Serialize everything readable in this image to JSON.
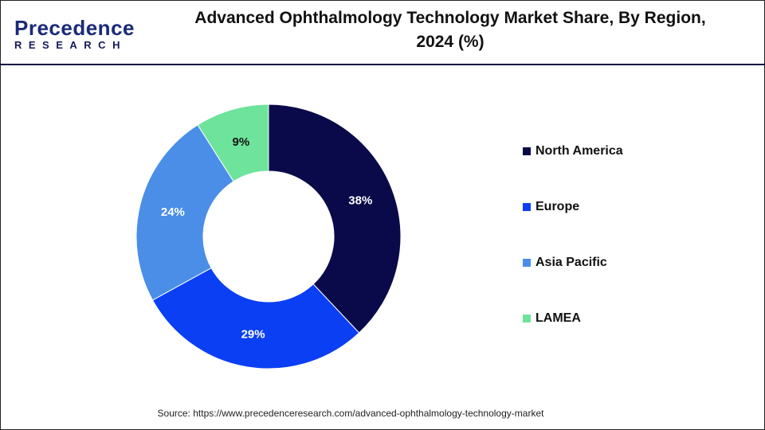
{
  "header": {
    "logo_main": "Precedence",
    "logo_sub": "RESEARCH",
    "title_line1": "Advanced Ophthalmology Technology Market Share, By Region,",
    "title_line2": "2024 (%)"
  },
  "chart_data": {
    "type": "donut",
    "title": "Advanced Ophthalmology Technology Market Share, By Region, 2024 (%)",
    "categories": [
      "North America",
      "Europe",
      "Asia Pacific",
      "LAMEA"
    ],
    "values": [
      38,
      29,
      24,
      9
    ],
    "labels": [
      "38%",
      "29%",
      "24%",
      "9%"
    ],
    "colors": [
      "#0a0a4b",
      "#0b3ff4",
      "#4a8ee8",
      "#6ee39c"
    ],
    "label_colors": [
      "#ffffff",
      "#ffffff",
      "#ffffff",
      "#111111"
    ],
    "start": "top",
    "direction": "clockwise",
    "legend_position": "right"
  },
  "source": "Source: https://www.precedenceresearch.com/advanced-ophthalmology-technology-market"
}
